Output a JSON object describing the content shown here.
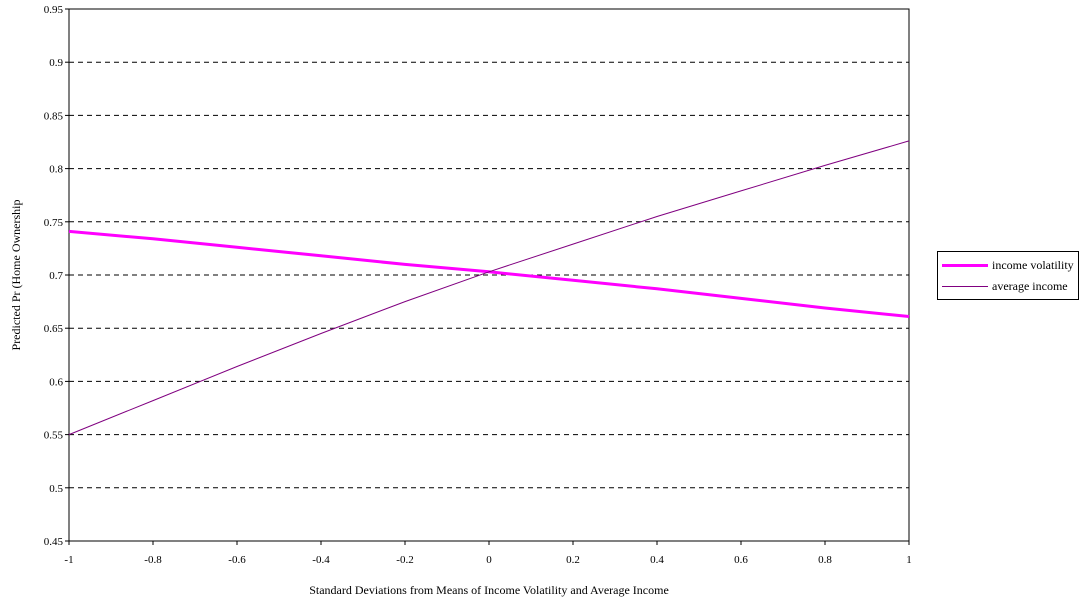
{
  "chart_data": {
    "type": "line",
    "title": "",
    "xlabel": "Standard Deviations from Means of Income Volatility and Average Income",
    "ylabel": "Predicted Pr (Home Ownership",
    "xlim": [
      -1,
      1
    ],
    "ylim": [
      0.45,
      0.95
    ],
    "x_ticks": [
      "-1",
      "-0.8",
      "-0.6",
      "-0.4",
      "-0.2",
      "0",
      "0.2",
      "0.4",
      "0.6",
      "0.8",
      "1"
    ],
    "y_ticks": [
      "0.45",
      "0.5",
      "0.55",
      "0.6",
      "0.65",
      "0.7",
      "0.75",
      "0.8",
      "0.85",
      "0.9",
      "0.95"
    ],
    "grid": "horizontal dashed",
    "legend_position": "right",
    "series": [
      {
        "name": "income volatility",
        "color": "#ff00ff",
        "style": "thick",
        "x": [
          -1,
          -0.8,
          -0.6,
          -0.4,
          -0.2,
          0,
          0.2,
          0.4,
          0.6,
          0.8,
          1
        ],
        "y": [
          0.741,
          0.734,
          0.726,
          0.718,
          0.71,
          0.703,
          0.695,
          0.687,
          0.678,
          0.669,
          0.661
        ]
      },
      {
        "name": "average income",
        "color": "#800080",
        "style": "thin",
        "x": [
          -1,
          -0.8,
          -0.6,
          -0.4,
          -0.2,
          0,
          0.2,
          0.4,
          0.6,
          0.8,
          1
        ],
        "y": [
          0.55,
          0.582,
          0.614,
          0.645,
          0.675,
          0.703,
          0.729,
          0.755,
          0.779,
          0.803,
          0.826
        ]
      }
    ]
  }
}
